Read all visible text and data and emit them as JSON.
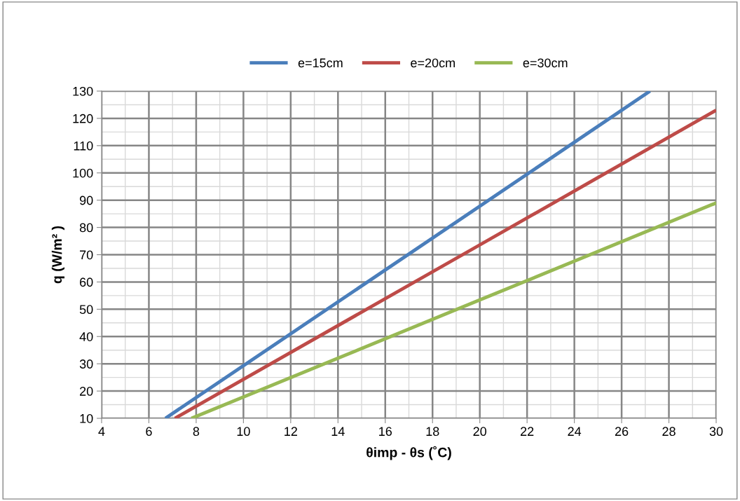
{
  "chart_data": {
    "type": "line",
    "xlabel": "θimp - θs (˚C)",
    "ylabel": "q (W/m² )",
    "xlim": [
      4,
      30
    ],
    "xticks": [
      4,
      6,
      8,
      10,
      12,
      14,
      16,
      18,
      20,
      22,
      24,
      26,
      28,
      30
    ],
    "ylim": [
      10,
      130
    ],
    "yticks": [
      10,
      20,
      30,
      40,
      50,
      60,
      70,
      80,
      90,
      100,
      110,
      120,
      130
    ],
    "grid": true,
    "legend": "top",
    "marker": "none",
    "line_style": "solid",
    "series": [
      {
        "name": "e=15cm",
        "color": "#4a7ebb",
        "x": [
          6.7,
          20,
          27.2
        ],
        "values": [
          10,
          87.8,
          130
        ]
      },
      {
        "name": "e=20cm",
        "color": "#be4b48",
        "x": [
          7.1,
          20,
          30
        ],
        "values": [
          10,
          73.6,
          123
        ]
      },
      {
        "name": "e=30cm",
        "color": "#98b954",
        "x": [
          7.8,
          20,
          30
        ],
        "values": [
          10,
          53.4,
          89
        ]
      }
    ]
  }
}
